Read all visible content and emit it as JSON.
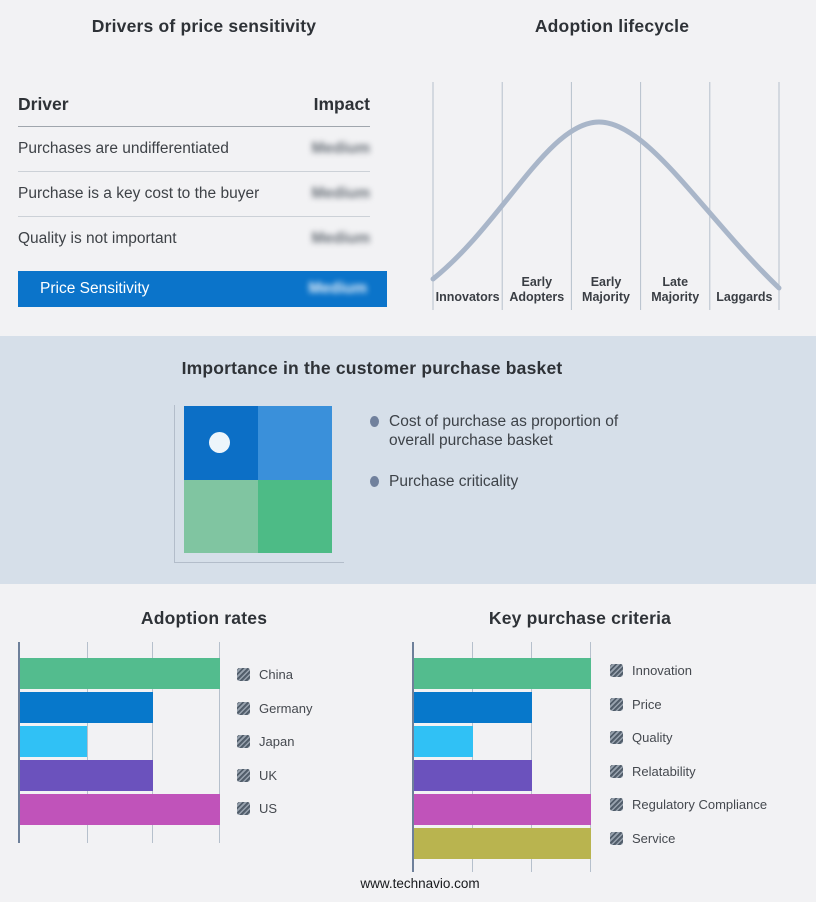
{
  "palette": {
    "band_background": "#f2f2f4",
    "mid_band_background": "#d6dfe9",
    "accent_blue": "#0b74ca",
    "curve_color": "#a9b6c9",
    "gridline_color": "#b6c0cc",
    "axis_color": "#6e809a"
  },
  "footer": {
    "url": "www.technavio.com"
  },
  "chart_data": [
    {
      "id": "drivers_table",
      "type": "table",
      "title": "Drivers of price sensitivity",
      "columns": [
        "Driver",
        "Impact"
      ],
      "rows": [
        [
          "Purchases are undifferentiated",
          "Medium"
        ],
        [
          "Purchase is a key cost to the buyer",
          "Medium"
        ],
        [
          "Quality is not important",
          "Medium"
        ]
      ],
      "summary": [
        "Price Sensitivity",
        "Medium"
      ],
      "note": "Impact values are shown blurred/redacted in the image"
    },
    {
      "id": "adoption_lifecycle",
      "type": "line",
      "title": "Adoption lifecycle",
      "categories": [
        "Innovators",
        "Early Adopters",
        "Early Majority",
        "Late Majority",
        "Laggards"
      ],
      "description": "Qualitative bell curve with no numeric axes; peak occurs over Early Majority",
      "peak_category": "Early Majority",
      "curve_color": "#a9b6c9"
    },
    {
      "id": "purchase_basket",
      "type": "heatmap",
      "title": "Importance in the customer purchase basket",
      "matrix_layout": "2x2 quadrant, marker dot in top-left quadrant",
      "quadrant_colors": {
        "top_left": "#0c6fc6",
        "top_right": "#3a90da",
        "bottom_left": "#80c5a1",
        "bottom_right": "#4dbb86"
      },
      "marker_quadrant": "top_left",
      "bullets": [
        "Cost of purchase as proportion of overall purchase basket",
        "Purchase criticality"
      ]
    },
    {
      "id": "adoption_rates",
      "type": "bar",
      "title": "Adoption rates",
      "orientation": "horizontal",
      "categories": [
        "China",
        "Germany",
        "Japan",
        "UK",
        "US"
      ],
      "values": [
        3,
        2,
        1,
        2,
        3
      ],
      "xmax": 3,
      "value_scale": "relative units read from unlabeled gridlines (max = 3)",
      "colors": [
        "#53bc8e",
        "#0778cb",
        "#30c1f5",
        "#6b52bd",
        "#c053ba"
      ],
      "grid": true,
      "legend_position": "right",
      "legend_marker": "hatched-swatch"
    },
    {
      "id": "key_purchase_criteria",
      "type": "bar",
      "title": "Key purchase criteria",
      "orientation": "horizontal",
      "categories": [
        "Innovation",
        "Price",
        "Quality",
        "Relatability",
        "Regulatory Compliance",
        "Service"
      ],
      "values": [
        3,
        2,
        1,
        2,
        3,
        3
      ],
      "xmax": 3,
      "value_scale": "relative units read from unlabeled gridlines (max = 3)",
      "colors": [
        "#53bc8e",
        "#0778cb",
        "#30c1f5",
        "#6b52bd",
        "#c053ba",
        "#b9b44f"
      ],
      "grid": true,
      "legend_position": "right",
      "legend_marker": "hatched-swatch"
    }
  ]
}
